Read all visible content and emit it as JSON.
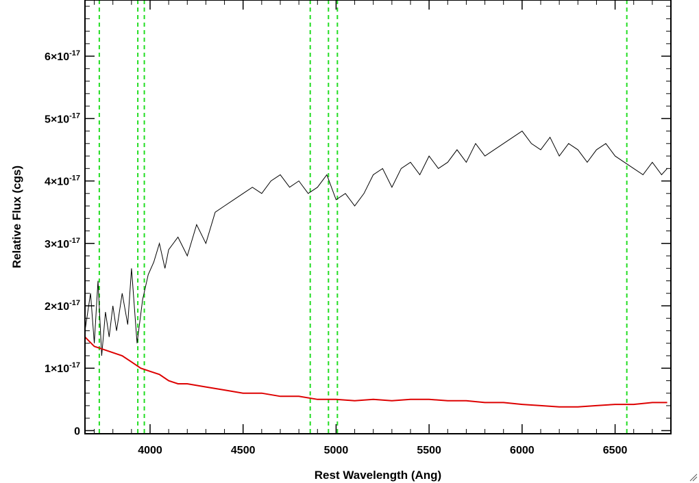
{
  "chart_data": {
    "type": "line",
    "xlabel": "Rest Wavelength (Ang)",
    "ylabel": "Relative Flux (cgs)",
    "xlim": [
      3650,
      6800
    ],
    "ylim": [
      -0.05,
      6.9
    ],
    "y_unit_exponent": -17,
    "grid": false,
    "x_ticks": [
      {
        "value": 4000,
        "label": "4000"
      },
      {
        "value": 4500,
        "label": "4500"
      },
      {
        "value": 5000,
        "label": "5000"
      },
      {
        "value": 5500,
        "label": "5500"
      },
      {
        "value": 6000,
        "label": "6000"
      },
      {
        "value": 6500,
        "label": "6500"
      }
    ],
    "y_ticks": [
      {
        "value": 0,
        "label": "0"
      },
      {
        "value": 1,
        "label": "1×10",
        "exp": "-17"
      },
      {
        "value": 2,
        "label": "2×10",
        "exp": "-17"
      },
      {
        "value": 3,
        "label": "3×10",
        "exp": "-17"
      },
      {
        "value": 4,
        "label": "4×10",
        "exp": "-17"
      },
      {
        "value": 5,
        "label": "5×10",
        "exp": "-17"
      },
      {
        "value": 6,
        "label": "6×10",
        "exp": "-17"
      }
    ],
    "vertical_markers": [
      3727,
      3934,
      3969,
      4861,
      4959,
      5007,
      6563
    ],
    "series": [
      {
        "color": "#000000",
        "x": [
          3650,
          3680,
          3700,
          3720,
          3740,
          3760,
          3780,
          3800,
          3820,
          3850,
          3880,
          3900,
          3930,
          3960,
          3990,
          4020,
          4050,
          4080,
          4100,
          4150,
          4200,
          4250,
          4300,
          4350,
          4400,
          4450,
          4500,
          4550,
          4600,
          4650,
          4700,
          4750,
          4800,
          4850,
          4900,
          4950,
          5000,
          5050,
          5100,
          5150,
          5200,
          5250,
          5300,
          5350,
          5400,
          5450,
          5500,
          5550,
          5600,
          5650,
          5700,
          5750,
          5800,
          5850,
          5900,
          5950,
          6000,
          6050,
          6100,
          6150,
          6200,
          6250,
          6300,
          6350,
          6400,
          6450,
          6500,
          6550,
          6600,
          6650,
          6700,
          6750,
          6780
        ],
        "y": [
          1.6,
          2.2,
          1.4,
          2.4,
          1.2,
          1.9,
          1.5,
          2.0,
          1.6,
          2.2,
          1.7,
          2.6,
          1.4,
          2.1,
          2.5,
          2.7,
          3.0,
          2.6,
          2.9,
          3.1,
          2.8,
          3.3,
          3.0,
          3.5,
          3.6,
          3.7,
          3.8,
          3.9,
          3.8,
          4.0,
          4.1,
          3.9,
          4.0,
          3.8,
          3.9,
          4.1,
          3.7,
          3.8,
          3.6,
          3.8,
          4.1,
          4.2,
          3.9,
          4.2,
          4.3,
          4.1,
          4.4,
          4.2,
          4.3,
          4.5,
          4.3,
          4.6,
          4.4,
          4.5,
          4.6,
          4.7,
          4.8,
          4.6,
          4.5,
          4.7,
          4.4,
          4.6,
          4.5,
          4.3,
          4.5,
          4.6,
          4.4,
          4.3,
          4.2,
          4.1,
          4.3,
          4.1,
          4.2
        ]
      },
      {
        "color": "#dd0000",
        "x": [
          3650,
          3700,
          3750,
          3800,
          3850,
          3900,
          3950,
          4000,
          4050,
          4100,
          4150,
          4200,
          4300,
          4400,
          4500,
          4600,
          4700,
          4800,
          4900,
          5000,
          5100,
          5200,
          5300,
          5400,
          5500,
          5600,
          5700,
          5800,
          5900,
          6000,
          6100,
          6200,
          6300,
          6400,
          6500,
          6600,
          6700,
          6780
        ],
        "y": [
          1.5,
          1.35,
          1.3,
          1.25,
          1.2,
          1.1,
          1.0,
          0.95,
          0.9,
          0.8,
          0.75,
          0.75,
          0.7,
          0.65,
          0.6,
          0.6,
          0.55,
          0.55,
          0.5,
          0.5,
          0.48,
          0.5,
          0.48,
          0.5,
          0.5,
          0.48,
          0.48,
          0.45,
          0.45,
          0.42,
          0.4,
          0.38,
          0.38,
          0.4,
          0.42,
          0.42,
          0.45,
          0.45
        ]
      }
    ]
  }
}
